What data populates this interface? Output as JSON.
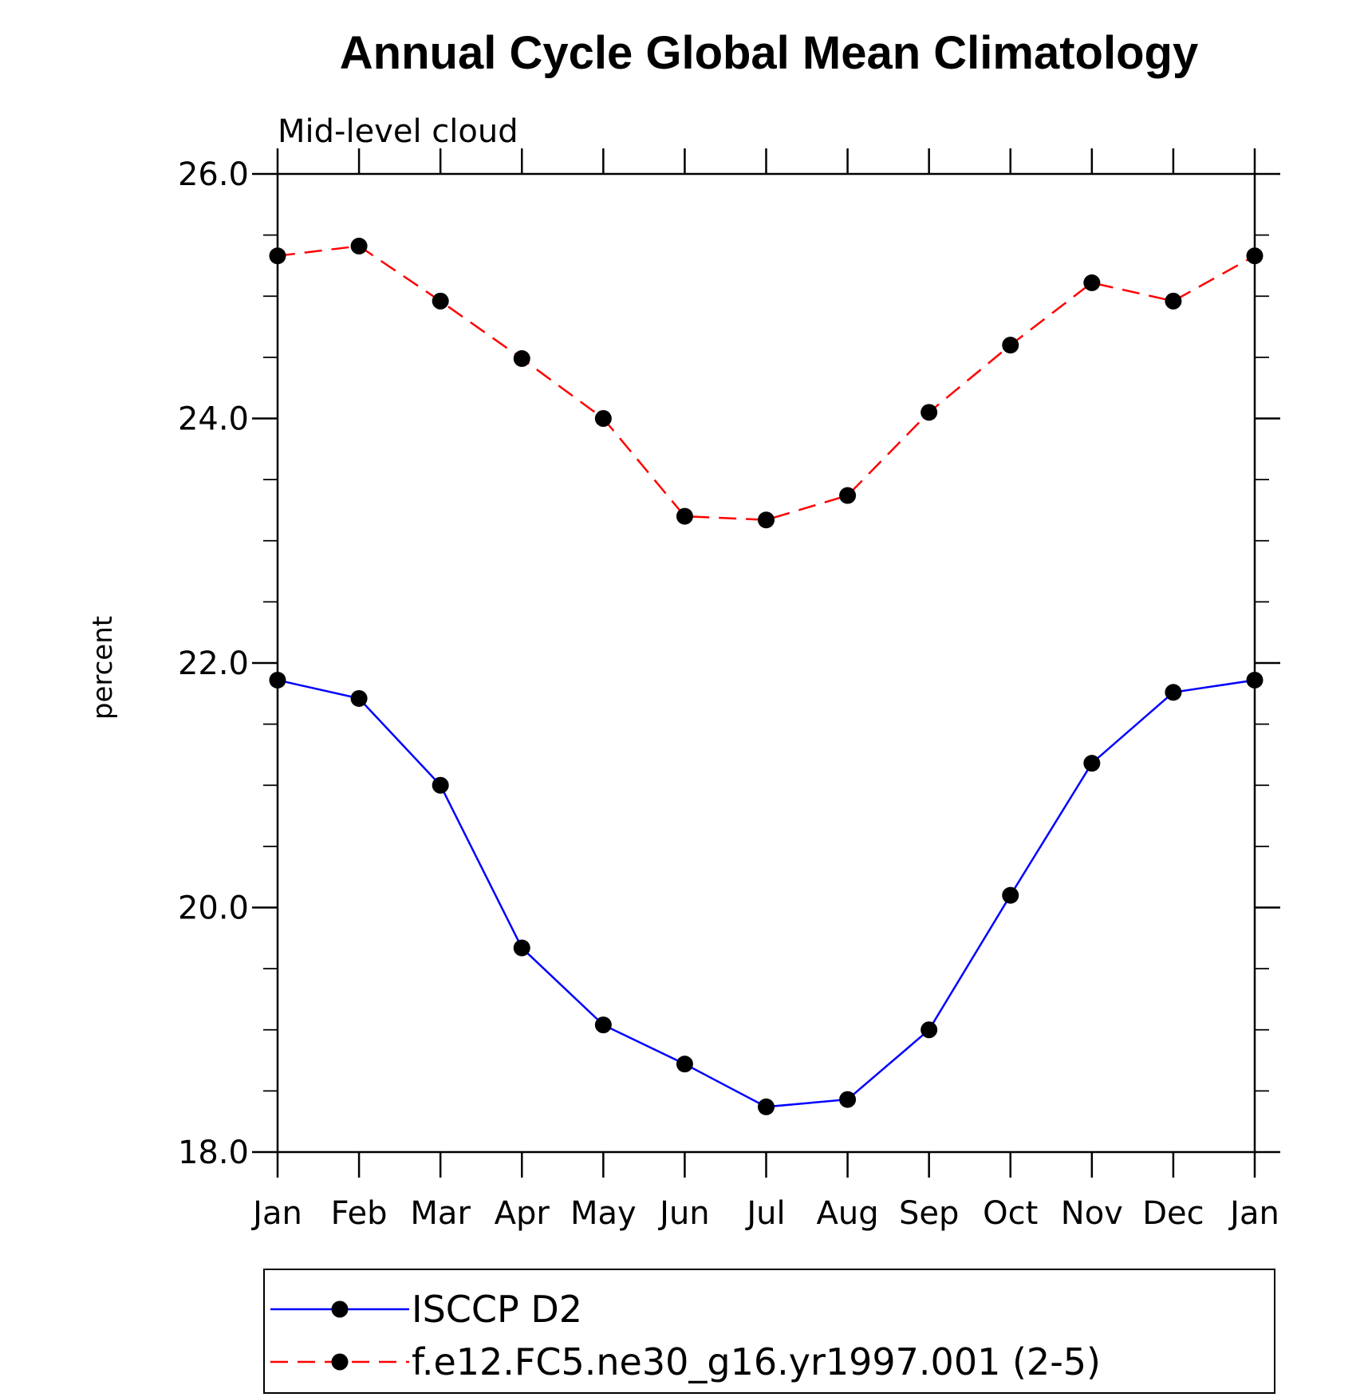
{
  "chart_data": {
    "type": "line",
    "title": "Annual Cycle Global Mean Climatology",
    "subtitle": "Mid-level cloud",
    "ylabel": "percent",
    "xlabel": "",
    "categories": [
      "Jan",
      "Feb",
      "Mar",
      "Apr",
      "May",
      "Jun",
      "Jul",
      "Aug",
      "Sep",
      "Oct",
      "Nov",
      "Dec",
      "Jan"
    ],
    "ylim": [
      18.0,
      26.0
    ],
    "yticks": [
      "18.0",
      "20.0",
      "22.0",
      "24.0",
      "26.0"
    ],
    "y_minor_step": 0.5,
    "grid": false,
    "legend_position": "bottom",
    "series": [
      {
        "name": "ISCCP D2",
        "color": "#0000ff",
        "line_style": "solid",
        "marker": "filled-circle",
        "values": [
          21.86,
          21.71,
          21.0,
          19.67,
          19.04,
          18.72,
          18.37,
          18.43,
          19.0,
          20.1,
          21.18,
          21.76,
          21.86
        ]
      },
      {
        "name": "f.e12.FC5.ne30_g16.yr1997.001 (2-5)",
        "color": "#ff0000",
        "line_style": "dashed",
        "marker": "filled-circle",
        "values": [
          25.33,
          25.41,
          24.96,
          24.49,
          24.0,
          23.2,
          23.17,
          23.37,
          24.05,
          24.6,
          25.11,
          24.96,
          25.33
        ]
      }
    ]
  }
}
